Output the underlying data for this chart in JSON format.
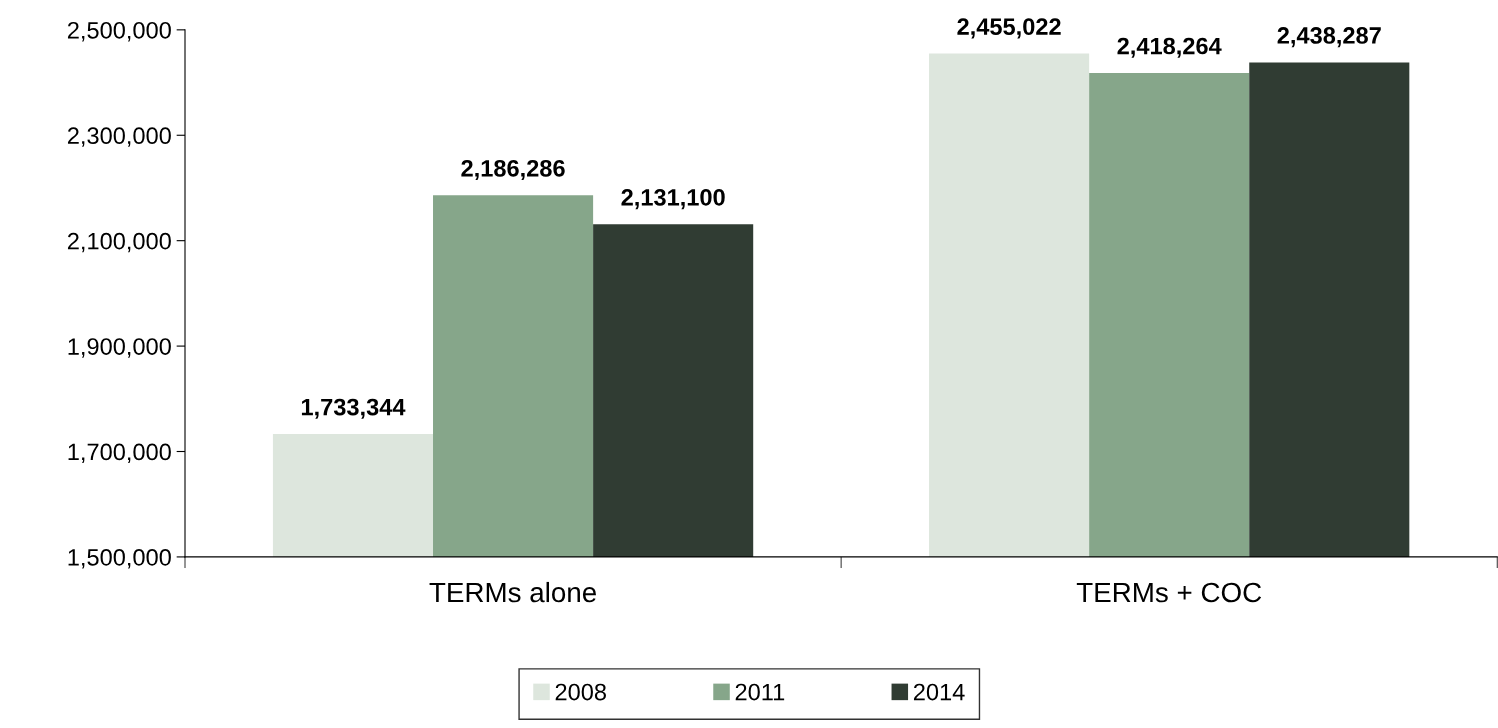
{
  "chart_data": {
    "type": "bar",
    "categories": [
      "TERMs alone",
      "TERMs + COC"
    ],
    "series": [
      {
        "name": "2008",
        "color": "#dde6dd",
        "values": [
          1733344,
          2455022
        ]
      },
      {
        "name": "2011",
        "color": "#86a68a",
        "values": [
          2186286,
          2418264
        ]
      },
      {
        "name": "2014",
        "color": "#303c33",
        "values": [
          2131100,
          2438287
        ]
      }
    ],
    "ylim": [
      1500000,
      2500000
    ],
    "yticks": [
      {
        "value": 1500000,
        "label": "1,500,000"
      },
      {
        "value": 1700000,
        "label": "1,700,000"
      },
      {
        "value": 1900000,
        "label": "1,900,000"
      },
      {
        "value": 2100000,
        "label": "2,100,000"
      },
      {
        "value": 2300000,
        "label": "2,300,000"
      },
      {
        "value": 2500000,
        "label": "2,500,000"
      }
    ],
    "value_labels": [
      [
        "1,733,344",
        "2,455,022"
      ],
      [
        "2,186,286",
        "2,418,264"
      ],
      [
        "2,131,100",
        "2,438,287"
      ]
    ],
    "legend": "bottom",
    "grid": false
  }
}
